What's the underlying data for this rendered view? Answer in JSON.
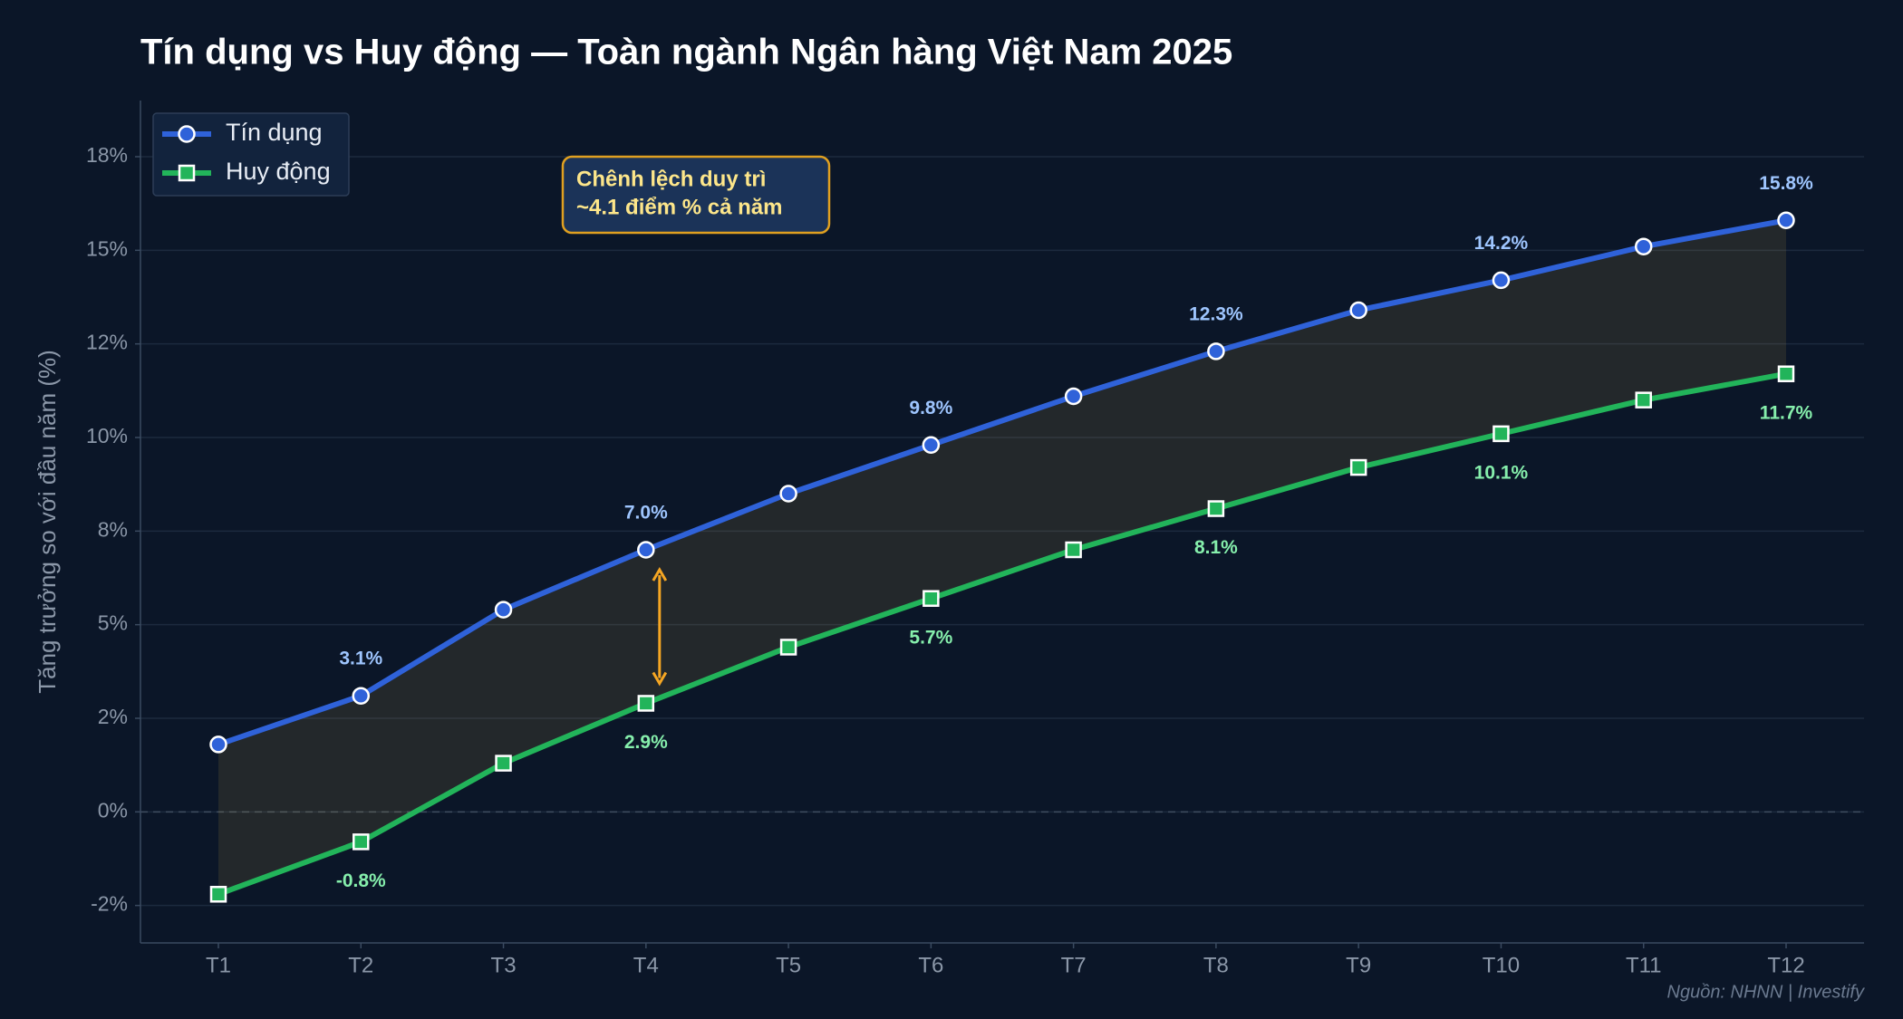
{
  "chart_data": {
    "type": "line",
    "title": "Tín dụng vs Huy động — Toàn ngành Ngân hàng Việt Nam 2025",
    "y_label": "Tăng trưởng so với đầu năm (%)",
    "categories": [
      "T1",
      "T2",
      "T3",
      "T4",
      "T5",
      "T6",
      "T7",
      "T8",
      "T9",
      "T10",
      "T11",
      "T12"
    ],
    "series": [
      {
        "name": "Tín dụng",
        "color": "#2f62d9",
        "label_color": "#9ec5fe",
        "marker": "circle",
        "values": [
          1.8,
          3.1,
          5.4,
          7.0,
          8.5,
          9.8,
          11.1,
          12.3,
          13.4,
          14.2,
          15.1,
          15.8
        ],
        "value_labels": [
          null,
          "3.1%",
          null,
          "7.0%",
          null,
          "9.8%",
          null,
          "12.3%",
          null,
          "14.2%",
          null,
          "15.8%"
        ]
      },
      {
        "name": "Huy động",
        "color": "#22b45a",
        "label_color": "#86efac",
        "marker": "square",
        "values": [
          -2.2,
          -0.8,
          1.3,
          2.9,
          4.4,
          5.7,
          7.0,
          8.1,
          9.2,
          10.1,
          11.0,
          11.7
        ],
        "value_labels": [
          null,
          "-0.8%",
          null,
          "2.9%",
          null,
          "5.7%",
          null,
          "8.1%",
          null,
          "10.1%",
          null,
          "11.7%"
        ]
      }
    ],
    "ylim": [
      -3.5,
      19
    ],
    "yticks": [
      {
        "value": -2.5,
        "label": "-2%"
      },
      {
        "value": 0,
        "label": "0%"
      },
      {
        "value": 2.5,
        "label": "2%"
      },
      {
        "value": 5,
        "label": "5%"
      },
      {
        "value": 7.5,
        "label": "8%"
      },
      {
        "value": 10,
        "label": "10%"
      },
      {
        "value": 12.5,
        "label": "12%"
      },
      {
        "value": 15,
        "label": "15%"
      },
      {
        "value": 17.5,
        "label": "18%"
      }
    ],
    "grid": true,
    "legend": "upper left",
    "fill_between": true,
    "annotation": {
      "lines": [
        "Chênh lệch duy trì",
        "~4.1 điểm % cả năm"
      ],
      "category_index": 3
    },
    "source": "Nguồn: NHNN  |  Investify"
  }
}
